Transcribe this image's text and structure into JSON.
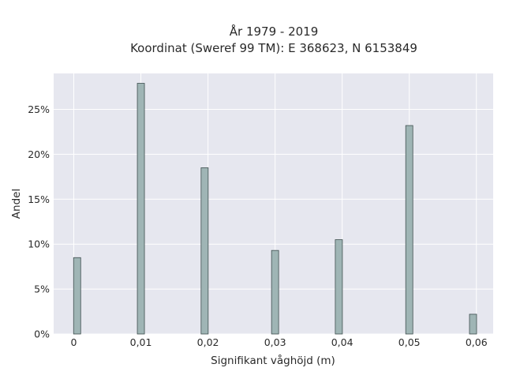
{
  "chart_data": {
    "type": "bar",
    "title_line1": "År 1979 - 2019",
    "title_line2": "Koordinat (Sweref 99 TM): E 368623, N 6153849",
    "xlabel": "Signifikant våghöjd (m)",
    "ylabel": "Andel",
    "x_tick_labels": [
      "0",
      "0,01",
      "0,02",
      "0,03",
      "0,04",
      "0,05",
      "0,06"
    ],
    "y_tick_labels": [
      "0%",
      "5%",
      "10%",
      "15%",
      "20%",
      "25%"
    ],
    "x": [
      0.0005,
      0.01,
      0.0195,
      0.03,
      0.0395,
      0.05,
      0.0595
    ],
    "values": [
      8.5,
      27.9,
      18.5,
      9.3,
      10.5,
      23.2,
      2.2
    ],
    "xlim": [
      -0.003,
      0.0625
    ],
    "ylim": [
      0,
      29.0
    ],
    "y_ticks": [
      0,
      5,
      10,
      15,
      20,
      25
    ],
    "x_ticks": [
      0,
      0.01,
      0.02,
      0.03,
      0.04,
      0.05,
      0.06
    ],
    "grid": true,
    "colors": {
      "bar_fill": "#9fb5b5",
      "bar_edge": "#3f4f4f",
      "plot_bg": "#e6e7ef",
      "grid": "#ffffff"
    }
  }
}
